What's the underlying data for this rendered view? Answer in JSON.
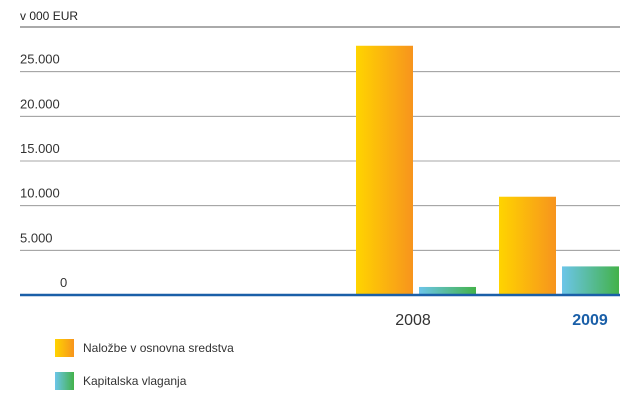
{
  "chart_data": {
    "type": "bar",
    "ylabel": "v 000 EUR",
    "categories": [
      "2008",
      "2009"
    ],
    "highlight_category": "2009",
    "ylim": [
      0,
      30000
    ],
    "yticks": [
      0,
      5000,
      10000,
      15000,
      20000,
      25000
    ],
    "ytick_labels": [
      "0",
      "5.000",
      "10.000",
      "15.000",
      "20.000",
      "25.000"
    ],
    "grid": true,
    "legend_position": "bottom-left",
    "series": [
      {
        "name": "Naložbe v osnovna sredstva",
        "values": [
          27900,
          11000
        ],
        "colors": [
          "#ffd400",
          "#f7941d"
        ]
      },
      {
        "name": "Kapitalska vlaganja",
        "values": [
          900,
          3200
        ],
        "colors": [
          "#6cc5e9",
          "#43b24a"
        ]
      }
    ]
  }
}
